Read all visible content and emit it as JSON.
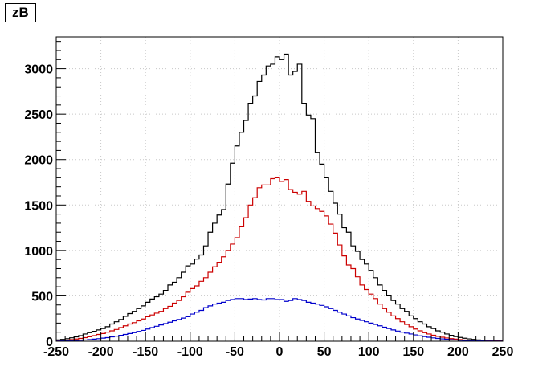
{
  "chart_data": {
    "type": "line",
    "title": "zB",
    "xlabel": "",
    "ylabel": "",
    "xlim": [
      -250,
      250
    ],
    "ylim": [
      0,
      3350
    ],
    "grid": true,
    "bin_width": 5,
    "x_ticks": [
      -250,
      -200,
      -150,
      -100,
      -50,
      0,
      50,
      100,
      150,
      200,
      250
    ],
    "y_ticks": [
      0,
      500,
      1000,
      1500,
      2000,
      2500,
      3000
    ],
    "x": [
      -247.5,
      -242.5,
      -237.5,
      -232.5,
      -227.5,
      -222.5,
      -217.5,
      -212.5,
      -207.5,
      -202.5,
      -197.5,
      -192.5,
      -187.5,
      -182.5,
      -177.5,
      -172.5,
      -167.5,
      -162.5,
      -157.5,
      -152.5,
      -147.5,
      -142.5,
      -137.5,
      -132.5,
      -127.5,
      -122.5,
      -117.5,
      -112.5,
      -107.5,
      -102.5,
      -97.5,
      -92.5,
      -87.5,
      -82.5,
      -77.5,
      -72.5,
      -67.5,
      -62.5,
      -57.5,
      -52.5,
      -47.5,
      -42.5,
      -37.5,
      -32.5,
      -27.5,
      -22.5,
      -17.5,
      -12.5,
      -7.5,
      -2.5,
      2.5,
      7.5,
      12.5,
      17.5,
      22.5,
      27.5,
      32.5,
      37.5,
      42.5,
      47.5,
      52.5,
      57.5,
      62.5,
      67.5,
      72.5,
      77.5,
      82.5,
      87.5,
      92.5,
      97.5,
      102.5,
      107.5,
      112.5,
      117.5,
      122.5,
      127.5,
      132.5,
      137.5,
      142.5,
      147.5,
      152.5,
      157.5,
      162.5,
      167.5,
      172.5,
      177.5,
      182.5,
      187.5,
      192.5,
      197.5,
      202.5,
      207.5,
      212.5,
      217.5,
      222.5,
      227.5,
      232.5,
      237.5,
      242.5,
      247.5
    ],
    "series": [
      {
        "color": "#000000",
        "values": [
          15,
          20,
          28,
          38,
          48,
          62,
          80,
          95,
          110,
          125,
          140,
          160,
          190,
          215,
          240,
          275,
          305,
          330,
          360,
          390,
          430,
          465,
          490,
          520,
          560,
          620,
          650,
          700,
          760,
          830,
          850,
          905,
          950,
          1050,
          1200,
          1300,
          1390,
          1450,
          1730,
          1960,
          2150,
          2300,
          2430,
          2620,
          2700,
          2860,
          2930,
          3030,
          3050,
          3130,
          3100,
          3160,
          2930,
          2970,
          3050,
          2620,
          2490,
          2450,
          2080,
          1950,
          1800,
          1650,
          1520,
          1400,
          1250,
          1200,
          1050,
          990,
          900,
          850,
          780,
          700,
          620,
          560,
          500,
          450,
          410,
          360,
          330,
          280,
          250,
          215,
          190,
          160,
          140,
          115,
          100,
          80,
          65,
          52,
          42,
          33,
          26,
          20,
          15,
          11,
          8,
          6,
          4,
          3
        ]
      },
      {
        "color": "#cc0000",
        "values": [
          6,
          9,
          13,
          18,
          24,
          31,
          40,
          50,
          62,
          75,
          85,
          100,
          115,
          130,
          150,
          170,
          190,
          205,
          225,
          245,
          270,
          290,
          310,
          330,
          360,
          385,
          420,
          450,
          490,
          540,
          580,
          610,
          660,
          700,
          760,
          820,
          870,
          930,
          1000,
          1070,
          1140,
          1260,
          1360,
          1500,
          1580,
          1690,
          1720,
          1720,
          1790,
          1800,
          1760,
          1780,
          1670,
          1640,
          1620,
          1650,
          1540,
          1490,
          1460,
          1430,
          1380,
          1290,
          1190,
          1060,
          940,
          840,
          800,
          710,
          620,
          570,
          520,
          470,
          410,
          360,
          320,
          280,
          250,
          215,
          185,
          160,
          135,
          115,
          95,
          80,
          66,
          54,
          44,
          36,
          29,
          23,
          18,
          14,
          11,
          8,
          6,
          5,
          4,
          3,
          2,
          2
        ]
      },
      {
        "color": "#0000cc",
        "values": [
          2,
          3,
          4,
          6,
          8,
          11,
          14,
          18,
          23,
          28,
          34,
          40,
          48,
          56,
          65,
          75,
          85,
          95,
          108,
          120,
          135,
          150,
          165,
          180,
          195,
          210,
          225,
          240,
          255,
          270,
          300,
          320,
          340,
          370,
          390,
          410,
          420,
          430,
          450,
          460,
          470,
          470,
          460,
          465,
          470,
          460,
          455,
          470,
          470,
          460,
          460,
          440,
          450,
          470,
          460,
          450,
          430,
          420,
          410,
          395,
          380,
          360,
          340,
          320,
          300,
          280,
          260,
          245,
          230,
          215,
          200,
          185,
          170,
          155,
          140,
          125,
          112,
          100,
          90,
          80,
          70,
          60,
          52,
          44,
          37,
          31,
          26,
          21,
          17,
          14,
          11,
          9,
          7,
          5,
          4,
          3,
          2,
          2,
          1,
          1
        ]
      }
    ]
  }
}
